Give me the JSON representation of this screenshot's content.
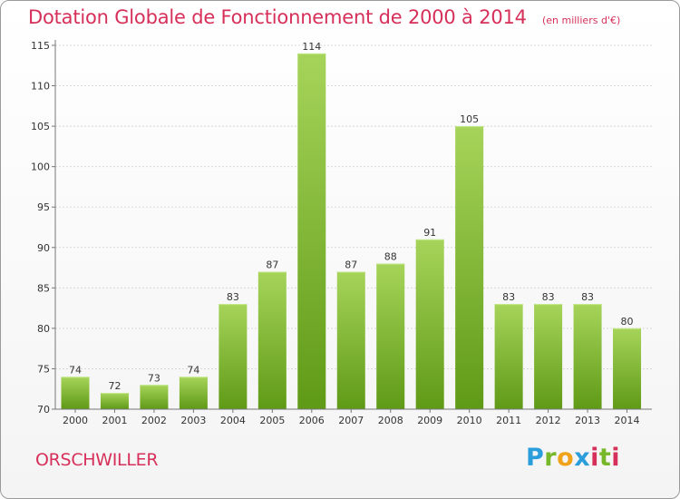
{
  "title": "Dotation Globale de Fonctionnement de 2000 à 2014",
  "subtitle": "(en milliers d'€)",
  "commune": "ORSCHWILLER",
  "logo": {
    "text": "Proxiti",
    "colors": [
      "#2a9ddb",
      "#77b82a",
      "#f0a21a",
      "#2a9ddb",
      "#d6305a",
      "#77b82a",
      "#2a9ddb"
    ]
  },
  "colors": {
    "bar_light": "#a6d45a",
    "bar_dark": "#5f9a16",
    "title": "#d6305a",
    "grid": "#d9d9d9"
  },
  "chart_data": {
    "type": "bar",
    "categories": [
      "2000",
      "2001",
      "2002",
      "2003",
      "2004",
      "2005",
      "2006",
      "2007",
      "2008",
      "2009",
      "2010",
      "2011",
      "2012",
      "2013",
      "2014"
    ],
    "values": [
      74,
      72,
      73,
      74,
      83,
      87,
      114,
      87,
      88,
      91,
      105,
      83,
      83,
      83,
      80
    ],
    "yticks": [
      70,
      75,
      80,
      85,
      90,
      95,
      100,
      105,
      110,
      115
    ],
    "ylim": [
      70,
      115
    ],
    "grid": true,
    "xlabel": "",
    "ylabel": ""
  }
}
